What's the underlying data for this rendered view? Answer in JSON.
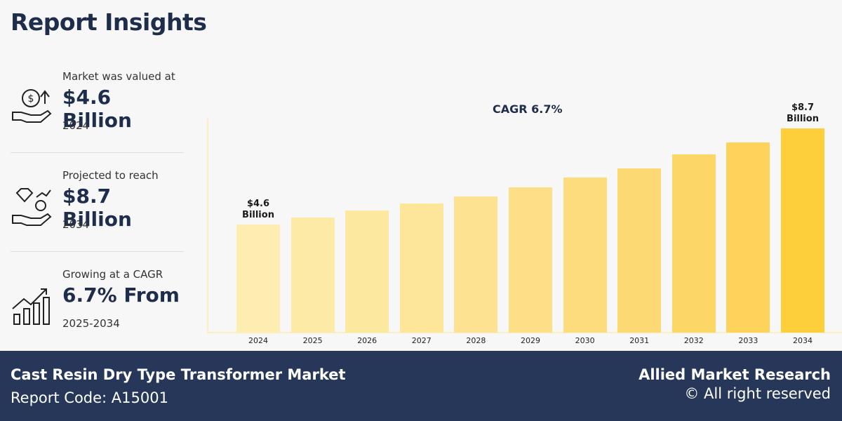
{
  "header": {
    "title": "Report Insights"
  },
  "insights": [
    {
      "label": "Market was valued at",
      "value": "$4.6 Billion",
      "period": "2024"
    },
    {
      "label": "Projected to reach",
      "value": "$8.7 Billion",
      "period": "2034"
    },
    {
      "label": "Growing at a CAGR",
      "value": "6.7% From",
      "period": "2025-2034"
    }
  ],
  "chart_data": {
    "type": "bar",
    "annotation": "CAGR 6.7%",
    "categories": [
      "2024",
      "2025",
      "2026",
      "2027",
      "2028",
      "2029",
      "2030",
      "2031",
      "2032",
      "2033",
      "2034"
    ],
    "values": [
      4.6,
      4.9,
      5.2,
      5.5,
      5.8,
      6.2,
      6.6,
      7.0,
      7.6,
      8.1,
      8.7
    ],
    "value_labels": [
      "$4.6 Billion",
      null,
      null,
      null,
      null,
      null,
      null,
      null,
      null,
      null,
      "$8.7 Billion"
    ],
    "colors": [
      "#fdedb0",
      "#fdeaa7",
      "#fde8a0",
      "#fde599",
      "#fde291",
      "#fddf88",
      "#fddc7e",
      "#fdd974",
      "#fdd668",
      "#fdd35b",
      "#fdcf3a"
    ]
  },
  "footer": {
    "market": "Cast Resin Dry Type Transformer Market",
    "code": "Report Code: A15001",
    "brand": "Allied Market Research",
    "rights": "© All right reserved"
  }
}
